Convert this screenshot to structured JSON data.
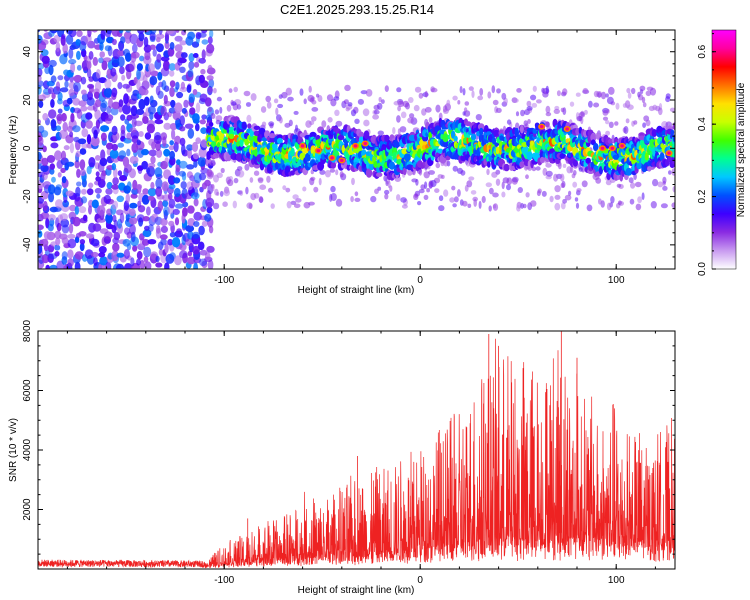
{
  "title": "C2E1.2025.293.15.25.R14",
  "chart_data": [
    {
      "type": "heatmap",
      "name": "spectrogram",
      "xlabel": "Height of straight line (km)",
      "ylabel": "Frequency (Hz)",
      "xlim": [
        -195,
        130
      ],
      "ylim": [
        -50,
        49
      ],
      "xticks": [
        -100,
        0,
        100
      ],
      "yticks": [
        -40,
        -20,
        0,
        20,
        40
      ],
      "colorbar": {
        "label": "Normalized spectral amplitude",
        "range": [
          0.0,
          0.66
        ],
        "ticks": [
          "0.0",
          "0.2",
          "0.4",
          "0.6"
        ],
        "tick_values": [
          0.0,
          0.2,
          0.4,
          0.6
        ],
        "colormap": [
          "#ffffff",
          "#c89af0",
          "#8a2be2",
          "#3d00ff",
          "#0050ff",
          "#00c8ff",
          "#00ff90",
          "#40ff00",
          "#c8ff00",
          "#ffe000",
          "#ff7000",
          "#ff0000",
          "#ff00a0",
          "#ff00ff"
        ]
      },
      "regions": [
        {
          "description_x_from": -195,
          "description_x_to": -108,
          "frequency_range": [
            -50,
            49
          ],
          "amplitude": 0.15,
          "kind": "noise"
        },
        {
          "description_x_from": -108,
          "description_x_to": 130,
          "frequency_center": 0,
          "band_halfwidth": 8,
          "amplitude": 0.35,
          "kind": "signal"
        }
      ],
      "peak_points": [
        {
          "x": -60,
          "y": 1
        },
        {
          "x": -52,
          "y": -1
        },
        {
          "x": -45,
          "y": -4
        },
        {
          "x": -40,
          "y": -5
        },
        {
          "x": -33,
          "y": 1
        },
        {
          "x": -28,
          "y": 2
        },
        {
          "x": 62,
          "y": 9
        },
        {
          "x": 75,
          "y": 8
        },
        {
          "x": 93,
          "y": 0
        },
        {
          "x": 98,
          "y": 0
        },
        {
          "x": 103,
          "y": 1
        },
        {
          "x": 127,
          "y": -2
        }
      ]
    },
    {
      "type": "line",
      "name": "snr",
      "xlabel": "Height of straight line (km)",
      "ylabel": "SNR (10 * v/v)",
      "xlim": [
        -195,
        130
      ],
      "ylim": [
        0,
        8000
      ],
      "xticks": [
        -100,
        0,
        100
      ],
      "yticks": [
        2000,
        4000,
        6000,
        8000
      ],
      "color": "#ee2222",
      "envelope": {
        "x": [
          -195,
          -150,
          -110,
          -100,
          -90,
          -80,
          -70,
          -60,
          -50,
          -40,
          -30,
          -20,
          -10,
          0,
          10,
          20,
          30,
          40,
          50,
          60,
          70,
          80,
          90,
          100,
          110,
          120,
          130
        ],
        "baseline": [
          150,
          120,
          110,
          150,
          200,
          250,
          300,
          300,
          350,
          400,
          400,
          400,
          500,
          600,
          700,
          700,
          800,
          800,
          800,
          900,
          900,
          900,
          900,
          900,
          800,
          800,
          800
        ],
        "peak": [
          320,
          300,
          280,
          900,
          1200,
          1700,
          1800,
          2600,
          2500,
          2800,
          3400,
          3500,
          4000,
          4500,
          5000,
          5500,
          7200,
          7600,
          7400,
          7200,
          8000,
          7200,
          5400,
          6000,
          4900,
          4600,
          5000
        ]
      },
      "highlights": [
        {
          "x": 35,
          "y": 7900
        },
        {
          "x": 40,
          "y": 7500
        },
        {
          "x": 72,
          "y": 8000
        },
        {
          "x": 80,
          "y": 7100
        },
        {
          "x": -32,
          "y": 3800
        },
        {
          "x": -88,
          "y": 1700
        }
      ]
    }
  ]
}
